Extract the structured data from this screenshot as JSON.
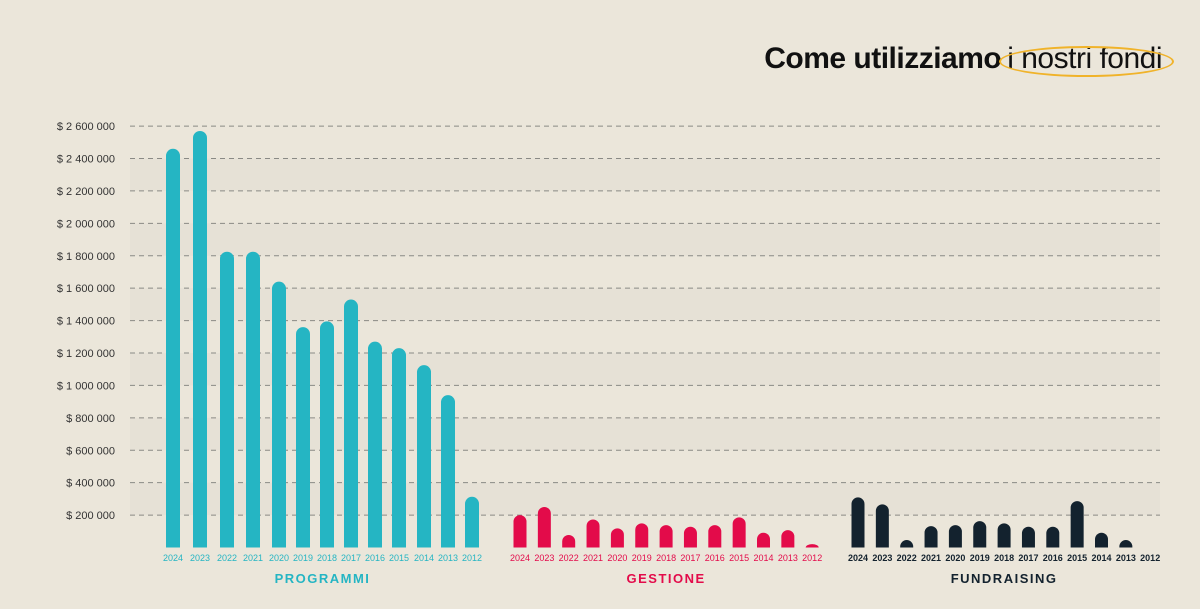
{
  "title": {
    "bold": "Come utilizziamo",
    "light": "i nostri fondi"
  },
  "colors": {
    "programmi": "#25b5c3",
    "gestione": "#e30b4a",
    "fundraising": "#13222e",
    "ring": "#f0b32a",
    "background": "#ebe6da"
  },
  "chart_data": {
    "type": "bar",
    "title": "Come utilizziamo i nostri fondi",
    "ylabel": "",
    "xlabel": "",
    "ylim": [
      0,
      2600000
    ],
    "yticks": [
      200000,
      400000,
      600000,
      800000,
      1000000,
      1200000,
      1400000,
      1600000,
      1800000,
      2000000,
      2200000,
      2400000,
      2600000
    ],
    "ytick_labels": [
      "$ 200 000",
      "$ 400 000",
      "$ 600 000",
      "$ 800 000",
      "$ 1 000 000",
      "$ 1 200 000",
      "$ 1 400 000",
      "$ 1 600 000",
      "$ 1 800 000",
      "$ 2 000 000",
      "$ 2 200 000",
      "$ 2 400 000",
      "$ 2 600 000"
    ],
    "grid": true,
    "categories": [
      "2024",
      "2023",
      "2022",
      "2021",
      "2020",
      "2019",
      "2018",
      "2017",
      "2016",
      "2015",
      "2014",
      "2013",
      "2012"
    ],
    "series": [
      {
        "name": "PROGRAMMI",
        "values": [
          2460000,
          2570000,
          1825000,
          1825000,
          1640000,
          1360000,
          1395000,
          1530000,
          1270000,
          1230000,
          1125000,
          940000,
          313000
        ]
      },
      {
        "name": "GESTIONE",
        "values": [
          200000,
          250000,
          77000,
          173000,
          118000,
          149000,
          138000,
          128000,
          138000,
          186000,
          91000,
          107000,
          21000
        ]
      },
      {
        "name": "FUNDRAISING",
        "values": [
          309000,
          266000,
          46000,
          132000,
          138000,
          163000,
          149000,
          128000,
          128000,
          286000,
          91000,
          46000,
          0
        ]
      }
    ]
  }
}
